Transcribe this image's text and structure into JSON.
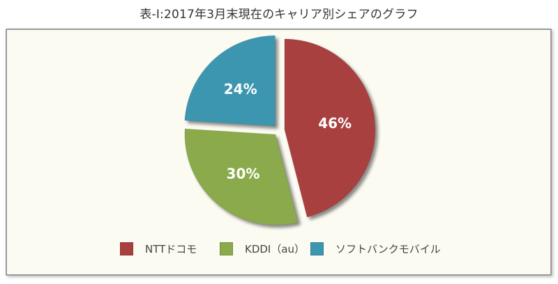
{
  "title": "表-Ⅰ:2017年3月末現在のキャリア別シェアのグラフ",
  "chart_data": {
    "type": "pie",
    "categories": [
      "NTTドコモ",
      "KDDI（au）",
      "ソフトバンクモバイル"
    ],
    "values": [
      46,
      30,
      24
    ],
    "labels": [
      "46%",
      "30%",
      "24%"
    ],
    "colors": [
      "#a8403f",
      "#8aaa4c",
      "#3d96b0"
    ],
    "legend_position": "bottom",
    "exploded": true
  }
}
